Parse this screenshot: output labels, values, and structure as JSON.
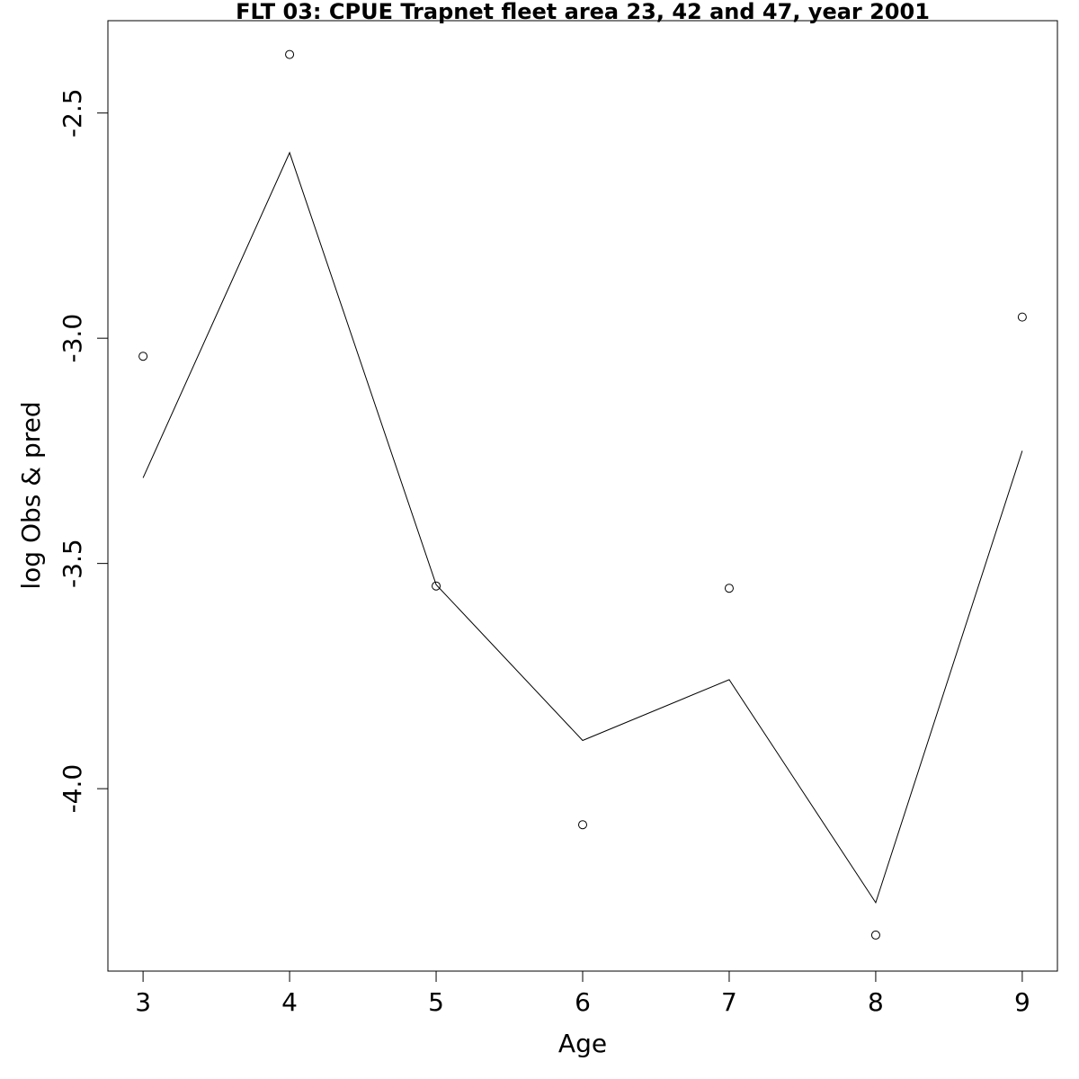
{
  "chart_data": {
    "type": "line",
    "title": "FLT 03: CPUE Trapnet fleet area 23, 42 and 47, year 2001",
    "xlabel": "Age",
    "ylabel": "log Obs & pred",
    "xlim": [
      2.76,
      9.24
    ],
    "ylim": [
      -4.405,
      -2.295
    ],
    "x_ticks": [
      3,
      4,
      5,
      6,
      7,
      8,
      9
    ],
    "x_tick_labels": [
      "3",
      "4",
      "5",
      "6",
      "7",
      "8",
      "9"
    ],
    "y_ticks": [
      -2.5,
      -3.0,
      -3.5,
      -4.0
    ],
    "y_tick_labels": [
      "-2.5",
      "-3.0",
      "-3.5",
      "-4.0"
    ],
    "grid": false,
    "legend": "none",
    "series": [
      {
        "style": "points",
        "x": [
          3,
          4,
          5,
          6,
          7,
          8,
          9
        ],
        "y": [
          -3.04,
          -2.37,
          -3.55,
          -4.08,
          -3.555,
          -4.325,
          -2.953
        ]
      },
      {
        "style": "line",
        "x": [
          3,
          4,
          5,
          6,
          7,
          8,
          9
        ],
        "y": [
          -3.31,
          -2.588,
          -3.547,
          -3.893,
          -3.758,
          -4.253,
          -3.25
        ]
      }
    ],
    "colors": {
      "line": "#000000",
      "points": "#000000",
      "axis": "#000000",
      "frame": "#000000",
      "background": "#ffffff"
    }
  }
}
